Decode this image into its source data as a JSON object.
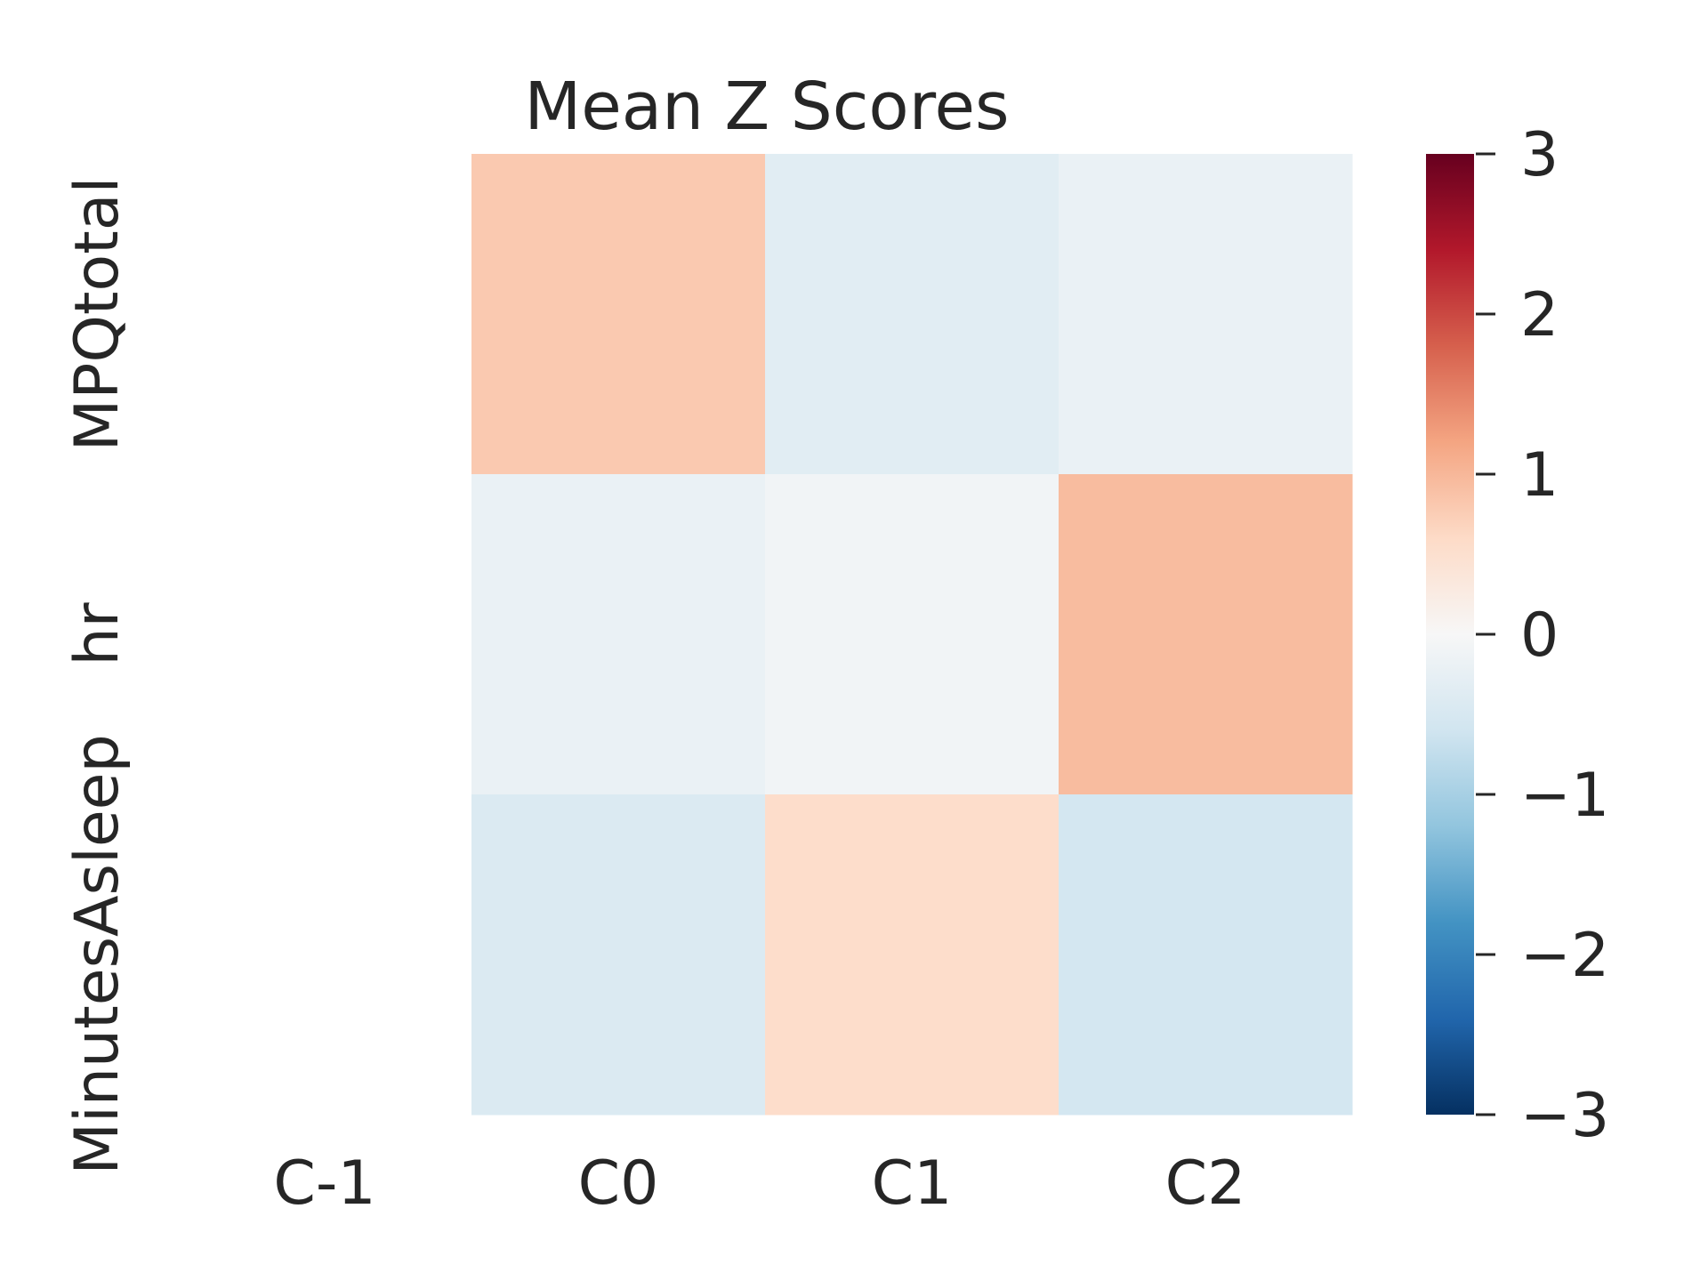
{
  "chart_data": {
    "type": "heatmap",
    "title": "Mean Z Scores",
    "x_categories": [
      "C-1",
      "C0",
      "C1",
      "C2"
    ],
    "y_categories": [
      "MPQtotal",
      "hr",
      "MinutesAsleep"
    ],
    "values": [
      [
        null,
        0.8,
        -0.35,
        -0.2
      ],
      [
        null,
        -0.2,
        -0.1,
        0.95
      ],
      [
        null,
        -0.45,
        0.55,
        -0.55
      ]
    ],
    "colormap": "RdBu_r",
    "vmin": -3,
    "vmax": 3,
    "colorbar_ticks": [
      3,
      2,
      1,
      0,
      -1,
      -2,
      -3
    ],
    "colorbar_tick_labels": [
      "3",
      "2",
      "1",
      "0",
      "−1",
      "−2",
      "−3"
    ],
    "grid": false,
    "legend": "colorbar-right"
  }
}
